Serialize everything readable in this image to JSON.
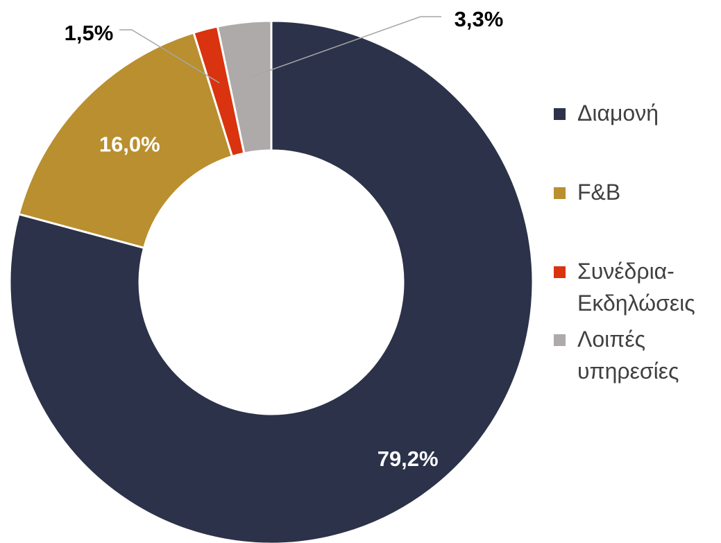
{
  "chart_data": {
    "type": "donut",
    "categories": [
      "Διαμονή",
      "F&B",
      "Συνέδρια-Εκδηλώσεις",
      "Λοιπές υπηρεσίες"
    ],
    "values": [
      79.2,
      16.0,
      1.5,
      3.3
    ],
    "value_labels": [
      "79,2%",
      "16,0%",
      "1,5%",
      "3,3%"
    ],
    "colors": [
      "#2b3249",
      "#b98f2f",
      "#d9330f",
      "#aeaaaa"
    ],
    "legend": "right"
  }
}
